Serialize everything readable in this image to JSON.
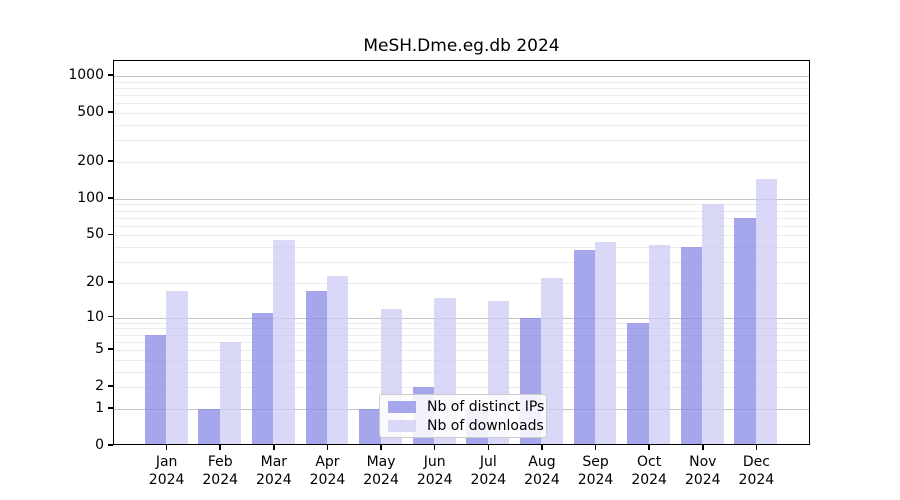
{
  "title": "MeSH.Dme.eg.db 2024",
  "chart_data": {
    "type": "bar",
    "title": "MeSH.Dme.eg.db 2024",
    "categories": [
      "Jan",
      "Feb",
      "Mar",
      "Apr",
      "May",
      "Jun",
      "Jul",
      "Aug",
      "Sep",
      "Oct",
      "Nov",
      "Dec"
    ],
    "category_year": "2024",
    "series": [
      {
        "name": "Nb of distinct IPs",
        "color": "#a6a6ed",
        "values": [
          7,
          1,
          11,
          17,
          1,
          2,
          1,
          10,
          38,
          9,
          40,
          69
        ]
      },
      {
        "name": "Nb of downloads",
        "color": "#d9d9f7",
        "values": [
          17,
          6,
          46,
          23,
          12,
          15,
          14,
          22,
          44,
          42,
          90,
          145
        ]
      }
    ],
    "yscale": "log1p",
    "ylim": [
      0,
      1300
    ],
    "yticks": [
      0,
      1,
      2,
      5,
      10,
      20,
      50,
      100,
      200,
      500,
      1000
    ],
    "ytick_labels": [
      "0",
      "1",
      "2",
      "5",
      "10",
      "20",
      "50",
      "100",
      "200",
      "500",
      "1000"
    ],
    "major_gridlines": [
      1,
      10,
      100,
      1000
    ],
    "minor_gridlines": [
      2,
      3,
      4,
      5,
      6,
      7,
      8,
      9,
      20,
      30,
      40,
      50,
      60,
      70,
      80,
      90,
      200,
      300,
      400,
      500,
      600,
      700,
      800,
      900
    ],
    "grid": true,
    "legend_position": "lower center inside",
    "colors": {
      "axis": "#000000",
      "major_grid": "#c3c3c3",
      "minor_grid": "#ececec"
    }
  }
}
